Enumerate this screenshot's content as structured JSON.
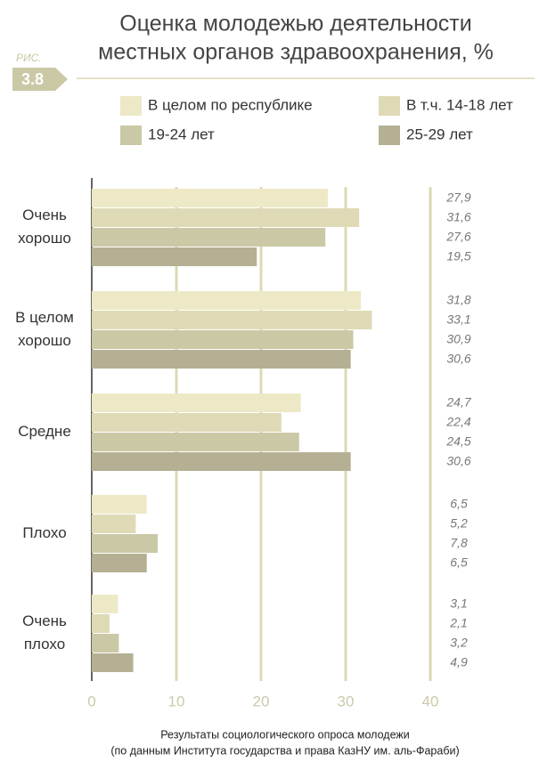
{
  "badge": {
    "label": "РИС.",
    "number": "3.8"
  },
  "chart_data": {
    "type": "hbar",
    "title_lines": [
      "Оценка молодежью деятельности",
      "местных органов здравоохранения, %"
    ],
    "categories": [
      "Очень\nхорошо",
      "В целом\nхорошо",
      "Средне",
      "Плохо",
      "Очень\nплохо"
    ],
    "series": [
      {
        "name": "В целом по республике",
        "color": "#ede9c7",
        "values": [
          27.9,
          31.8,
          24.7,
          6.5,
          3.1
        ],
        "value_labels": [
          "27,9",
          "31,8",
          "24,7",
          "6,5",
          "3,1"
        ]
      },
      {
        "name": "В т.ч. 14-18 лет",
        "color": "#dedab6",
        "values": [
          31.6,
          33.1,
          22.4,
          5.2,
          2.1
        ],
        "value_labels": [
          "31,6",
          "33,1",
          "22,4",
          "5,2",
          "2,1"
        ]
      },
      {
        "name": "19-24 лет",
        "color": "#cbc8a6",
        "values": [
          27.6,
          30.9,
          24.5,
          7.8,
          3.2
        ],
        "value_labels": [
          "27,6",
          "30,9",
          "24,5",
          "7,8",
          "3,2"
        ]
      },
      {
        "name": "25-29 лет",
        "color": "#b5b093",
        "values": [
          19.5,
          30.6,
          30.6,
          6.5,
          4.9
        ],
        "value_labels": [
          "19,5",
          "30,6",
          "30,6",
          "6,5",
          "4,9"
        ]
      }
    ],
    "xlim": [
      0,
      40
    ],
    "xticks": [
      0,
      10,
      20,
      30,
      40
    ],
    "grid": true,
    "footnote_lines": [
      "Результаты социологического опроса молодежи",
      "(по данным Института государства и права КазНУ им. аль-Фараби)"
    ]
  }
}
